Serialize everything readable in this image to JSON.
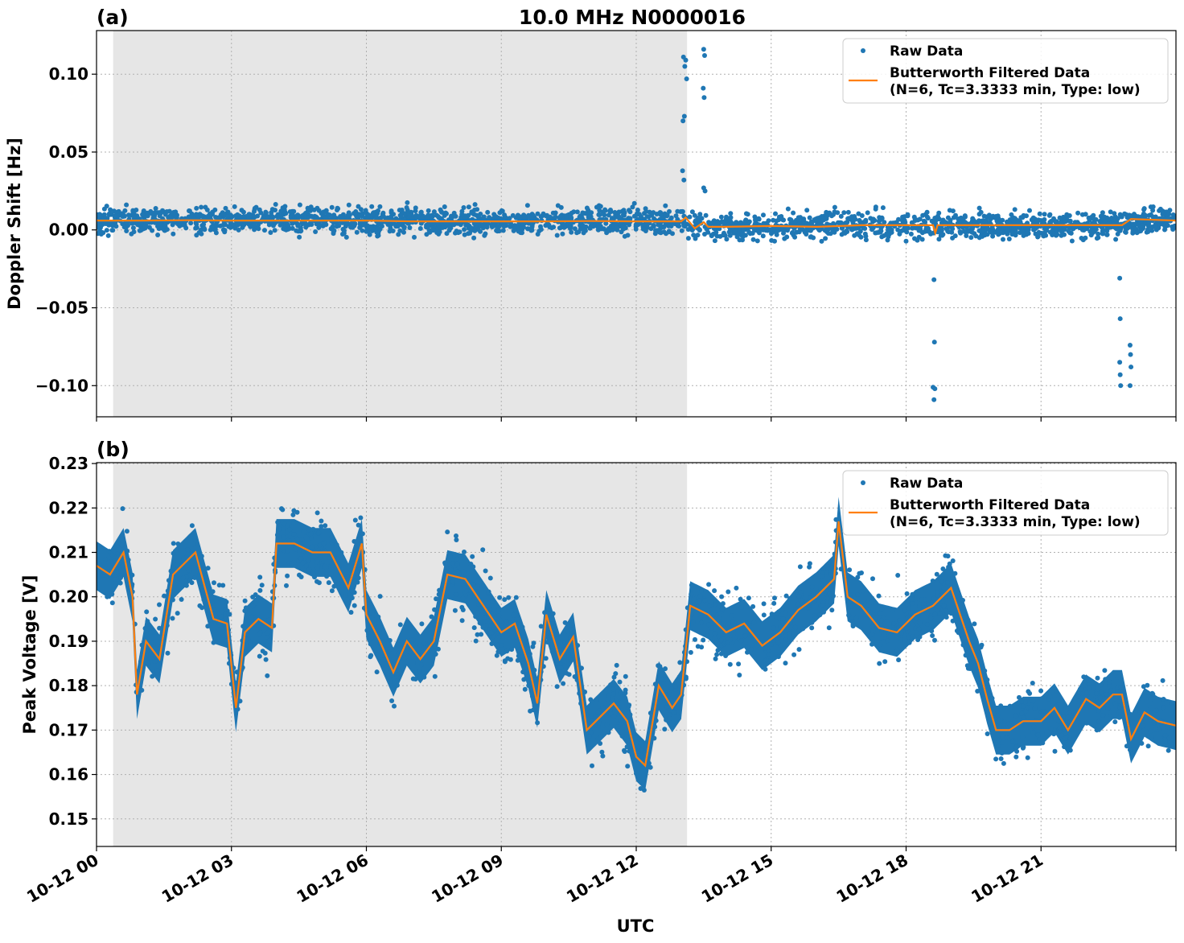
{
  "title": "10.0 MHz N0000016",
  "xlabel": "UTC",
  "x_ticks": [
    "10-12 00",
    "10-12 03",
    "10-12 06",
    "10-12 09",
    "10-12 12",
    "10-12 15",
    "10-12 18",
    "10-12 21"
  ],
  "colors": {
    "raw": "#1f77b4",
    "filtered": "#ff7f0e",
    "shade": "#e6e6e6"
  },
  "chart_data": [
    {
      "type": "scatter",
      "panel_label": "(a)",
      "ylabel": "Doppler Shift [Hz]",
      "xlim_hours": [
        0,
        24
      ],
      "ylim": [
        -0.12,
        0.128
      ],
      "y_ticks": [
        0.1,
        0.05,
        0.0,
        -0.05,
        -0.1
      ],
      "y_tick_labels": [
        "0.10",
        "0.05",
        "0.00",
        "−0.05",
        "−0.10"
      ],
      "grid": true,
      "legend_position": "upper right",
      "shaded_span_hours": [
        0.37,
        13.13
      ],
      "series": [
        {
          "name": "Raw Data",
          "style": "points",
          "x_hours": [
            0,
            1,
            2,
            3,
            4,
            5,
            6,
            7,
            8,
            9,
            10,
            11,
            12,
            13,
            13.1,
            14,
            15,
            16,
            17,
            18,
            19,
            20,
            21,
            22,
            23,
            24
          ],
          "values": [
            0.006,
            0.006,
            0.006,
            0.006,
            0.006,
            0.006,
            0.006,
            0.0055,
            0.0055,
            0.0055,
            0.0055,
            0.0055,
            0.0055,
            0.0055,
            0.003,
            0.002,
            0.002,
            0.003,
            0.003,
            0.003,
            0.003,
            0.003,
            0.003,
            0.003,
            0.005,
            0.006
          ],
          "spread": 0.009,
          "outliers": [
            {
              "x": 13.05,
              "y": 0.111
            },
            {
              "x": 13.08,
              "y": 0.105
            },
            {
              "x": 13.1,
              "y": 0.109
            },
            {
              "x": 13.12,
              "y": 0.097
            },
            {
              "x": 13.07,
              "y": 0.073
            },
            {
              "x": 13.04,
              "y": 0.07
            },
            {
              "x": 13.03,
              "y": 0.038
            },
            {
              "x": 13.06,
              "y": 0.032
            },
            {
              "x": 13.5,
              "y": 0.116
            },
            {
              "x": 13.52,
              "y": 0.112
            },
            {
              "x": 13.49,
              "y": 0.091
            },
            {
              "x": 13.51,
              "y": 0.085
            },
            {
              "x": 13.5,
              "y": 0.027
            },
            {
              "x": 13.53,
              "y": 0.025
            },
            {
              "x": 18.62,
              "y": -0.032
            },
            {
              "x": 18.63,
              "y": -0.072
            },
            {
              "x": 18.6,
              "y": -0.101
            },
            {
              "x": 18.64,
              "y": -0.102
            },
            {
              "x": 18.62,
              "y": -0.109
            },
            {
              "x": 22.75,
              "y": -0.031
            },
            {
              "x": 22.76,
              "y": -0.057
            },
            {
              "x": 22.75,
              "y": -0.085
            },
            {
              "x": 22.76,
              "y": -0.093
            },
            {
              "x": 22.77,
              "y": -0.1
            },
            {
              "x": 22.98,
              "y": -0.074
            },
            {
              "x": 22.99,
              "y": -0.08
            },
            {
              "x": 23.0,
              "y": -0.088
            },
            {
              "x": 22.98,
              "y": -0.1
            }
          ]
        },
        {
          "name": "Butterworth Filtered Data\n(N=6, Tc=3.3333 min, Type: low)",
          "style": "line",
          "x_hours": [
            0,
            1,
            2,
            3,
            4,
            5,
            6,
            7,
            8,
            9,
            10,
            11,
            12,
            13,
            13.1,
            13.3,
            13.5,
            13.6,
            14,
            15,
            16,
            17,
            18,
            18.6,
            18.65,
            18.7,
            19,
            20,
            21,
            22,
            22.8,
            23,
            24
          ],
          "values": [
            0.006,
            0.006,
            0.0062,
            0.006,
            0.006,
            0.006,
            0.006,
            0.0055,
            0.0055,
            0.0055,
            0.0055,
            0.0057,
            0.0055,
            0.0055,
            0.008,
            0.001,
            0.005,
            0.002,
            0.002,
            0.0025,
            0.002,
            0.003,
            0.003,
            0.003,
            -0.002,
            0.003,
            0.003,
            0.003,
            0.003,
            0.003,
            0.003,
            0.007,
            0.006
          ]
        }
      ]
    },
    {
      "type": "scatter",
      "panel_label": "(b)",
      "ylabel": "Peak Voltage [V]",
      "xlim_hours": [
        0,
        24
      ],
      "ylim": [
        0.1438,
        0.2302
      ],
      "y_ticks": [
        0.23,
        0.22,
        0.21,
        0.2,
        0.19,
        0.18,
        0.17,
        0.16,
        0.15
      ],
      "y_tick_labels": [
        "0.23",
        "0.22",
        "0.21",
        "0.20",
        "0.19",
        "0.18",
        "0.17",
        "0.16",
        "0.15"
      ],
      "grid": true,
      "legend_position": "upper right",
      "shaded_span_hours": [
        0.37,
        13.13
      ],
      "series": [
        {
          "name": "Raw Data",
          "style": "band",
          "x_hours": [
            0,
            0.3,
            0.6,
            0.8,
            0.9,
            1.1,
            1.4,
            1.7,
            2.0,
            2.2,
            2.6,
            2.9,
            3.1,
            3.3,
            3.6,
            3.9,
            4.0,
            4.4,
            4.8,
            5.2,
            5.6,
            5.9,
            6.0,
            6.3,
            6.6,
            6.9,
            7.2,
            7.5,
            7.8,
            8.2,
            8.6,
            9.0,
            9.3,
            9.6,
            9.8,
            10.0,
            10.3,
            10.6,
            10.9,
            11.2,
            11.5,
            11.8,
            12.0,
            12.2,
            12.5,
            12.8,
            13.0,
            13.2,
            13.6,
            14.0,
            14.4,
            14.8,
            15.2,
            15.6,
            16.0,
            16.4,
            16.5,
            16.7,
            17.0,
            17.4,
            17.8,
            18.2,
            18.6,
            19.0,
            19.4,
            19.6,
            19.8,
            20.0,
            20.3,
            20.6,
            21.0,
            21.3,
            21.6,
            22.0,
            22.3,
            22.6,
            22.8,
            23.0,
            23.3,
            23.6,
            24.0
          ],
          "values": [
            0.207,
            0.205,
            0.21,
            0.2,
            0.178,
            0.19,
            0.186,
            0.205,
            0.208,
            0.21,
            0.195,
            0.194,
            0.175,
            0.192,
            0.195,
            0.193,
            0.212,
            0.212,
            0.21,
            0.21,
            0.202,
            0.212,
            0.196,
            0.19,
            0.183,
            0.19,
            0.186,
            0.19,
            0.205,
            0.204,
            0.198,
            0.192,
            0.194,
            0.185,
            0.176,
            0.196,
            0.186,
            0.191,
            0.17,
            0.173,
            0.176,
            0.172,
            0.164,
            0.162,
            0.18,
            0.175,
            0.178,
            0.198,
            0.196,
            0.192,
            0.194,
            0.189,
            0.192,
            0.197,
            0.2,
            0.204,
            0.217,
            0.2,
            0.198,
            0.193,
            0.192,
            0.196,
            0.198,
            0.202,
            0.19,
            0.185,
            0.177,
            0.17,
            0.17,
            0.172,
            0.172,
            0.175,
            0.17,
            0.177,
            0.175,
            0.178,
            0.178,
            0.168,
            0.174,
            0.172,
            0.171
          ],
          "spread": 0.0055
        },
        {
          "name": "Butterworth Filtered Data\n(N=6, Tc=3.3333 min, Type: low)",
          "style": "line",
          "x_hours": [
            0,
            0.3,
            0.6,
            0.8,
            0.9,
            1.1,
            1.4,
            1.7,
            2.0,
            2.2,
            2.6,
            2.9,
            3.1,
            3.3,
            3.6,
            3.9,
            4.0,
            4.4,
            4.8,
            5.2,
            5.6,
            5.9,
            6.0,
            6.3,
            6.6,
            6.9,
            7.2,
            7.5,
            7.8,
            8.2,
            8.6,
            9.0,
            9.3,
            9.6,
            9.8,
            10.0,
            10.3,
            10.6,
            10.9,
            11.2,
            11.5,
            11.8,
            12.0,
            12.2,
            12.5,
            12.8,
            13.0,
            13.2,
            13.6,
            14.0,
            14.4,
            14.8,
            15.2,
            15.6,
            16.0,
            16.4,
            16.5,
            16.7,
            17.0,
            17.4,
            17.8,
            18.2,
            18.6,
            19.0,
            19.4,
            19.6,
            19.8,
            20.0,
            20.3,
            20.6,
            21.0,
            21.3,
            21.6,
            22.0,
            22.3,
            22.6,
            22.8,
            23.0,
            23.3,
            23.6,
            24.0
          ],
          "values": [
            0.207,
            0.205,
            0.21,
            0.2,
            0.178,
            0.19,
            0.186,
            0.205,
            0.208,
            0.21,
            0.195,
            0.194,
            0.175,
            0.192,
            0.195,
            0.193,
            0.212,
            0.212,
            0.21,
            0.21,
            0.202,
            0.212,
            0.196,
            0.19,
            0.183,
            0.19,
            0.186,
            0.19,
            0.205,
            0.204,
            0.198,
            0.192,
            0.194,
            0.185,
            0.176,
            0.196,
            0.186,
            0.191,
            0.17,
            0.173,
            0.176,
            0.172,
            0.164,
            0.162,
            0.18,
            0.175,
            0.178,
            0.198,
            0.196,
            0.192,
            0.194,
            0.189,
            0.192,
            0.197,
            0.2,
            0.204,
            0.217,
            0.2,
            0.198,
            0.193,
            0.192,
            0.196,
            0.198,
            0.202,
            0.19,
            0.185,
            0.177,
            0.17,
            0.17,
            0.172,
            0.172,
            0.175,
            0.17,
            0.177,
            0.175,
            0.178,
            0.178,
            0.168,
            0.174,
            0.172,
            0.171
          ]
        }
      ]
    }
  ]
}
